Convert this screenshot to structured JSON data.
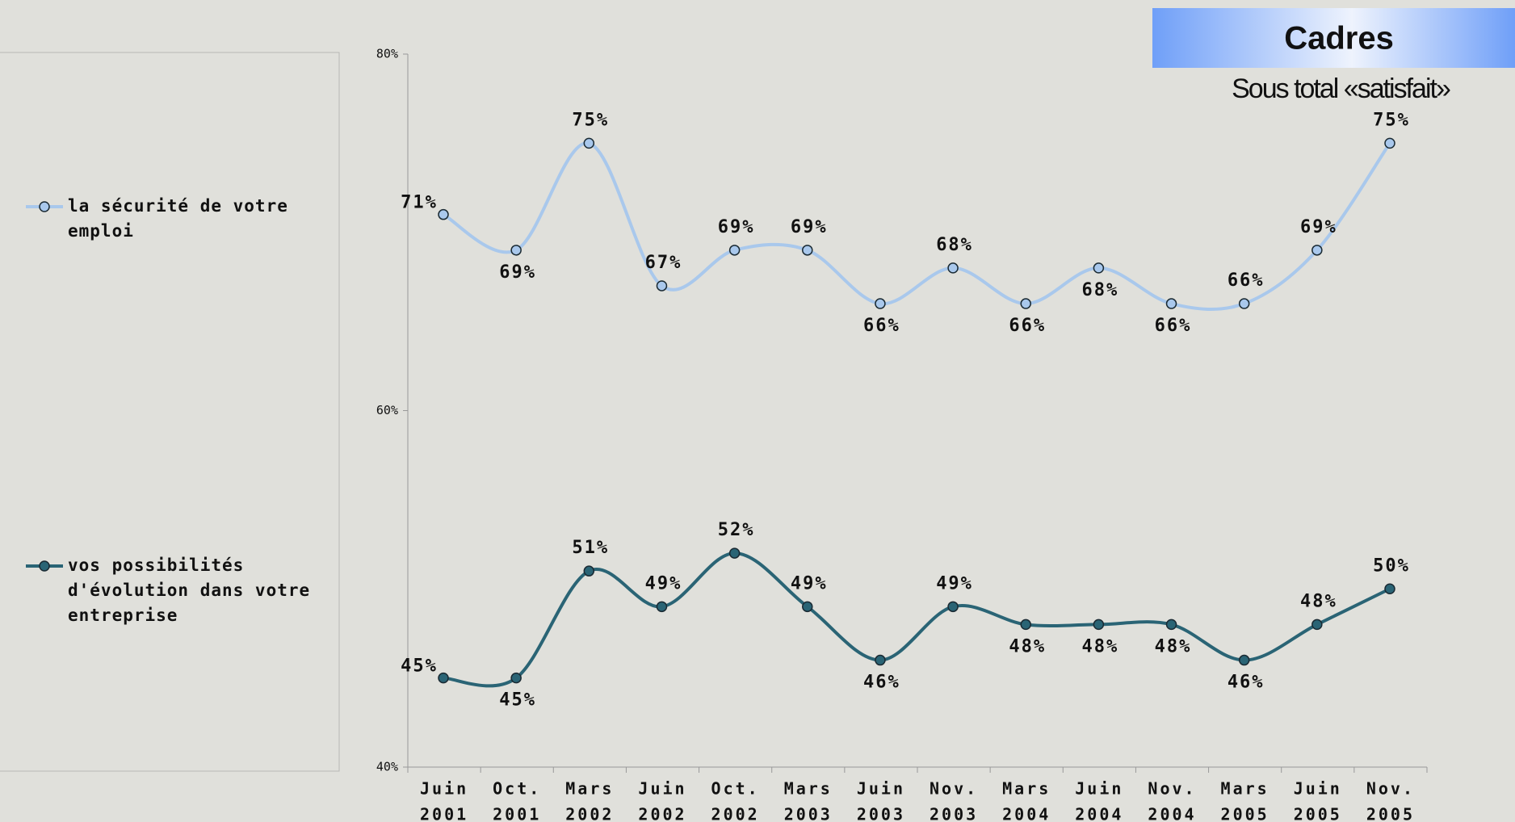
{
  "chart_data": {
    "type": "line",
    "title": "Cadres",
    "subtitle": "Sous total «satisfait»",
    "categories": [
      [
        "Juin",
        "2001"
      ],
      [
        "Oct.",
        "2001"
      ],
      [
        "Mars",
        "2002"
      ],
      [
        "Juin",
        "2002"
      ],
      [
        "Oct.",
        "2002"
      ],
      [
        "Mars",
        "2003"
      ],
      [
        "Juin",
        "2003"
      ],
      [
        "Nov.",
        "2003"
      ],
      [
        "Mars",
        "2004"
      ],
      [
        "Juin",
        "2004"
      ],
      [
        "Nov.",
        "2004"
      ],
      [
        "Mars",
        "2005"
      ],
      [
        "Juin",
        "2005"
      ],
      [
        "Nov.",
        "2005"
      ]
    ],
    "series": [
      {
        "name": "la sécurité de votre emploi",
        "color": "#a9c8ec",
        "values": [
          71,
          69,
          75,
          67,
          69,
          69,
          66,
          68,
          66,
          68,
          66,
          66,
          69,
          75
        ],
        "value_labels": [
          "71%",
          "69%",
          "75%",
          "67%",
          "69%",
          "69%",
          "66%",
          "68%",
          "66%",
          "68%",
          "66%",
          "66%",
          "69%",
          "75%"
        ]
      },
      {
        "name": "vos possibilités d'évolution dans votre entreprise",
        "color": "#2a6475",
        "values": [
          45,
          45,
          51,
          49,
          52,
          49,
          46,
          49,
          48,
          48,
          48,
          46,
          48,
          50
        ],
        "value_labels": [
          "45%",
          "45%",
          "51%",
          "49%",
          "52%",
          "49%",
          "46%",
          "49%",
          "48%",
          "48%",
          "48%",
          "46%",
          "48%",
          "50%"
        ]
      }
    ],
    "ylim": [
      40,
      80
    ],
    "yticks": [
      {
        "value": 40,
        "label": "40%"
      },
      {
        "value": 60,
        "label": "60%"
      },
      {
        "value": 80,
        "label": "80%"
      }
    ],
    "legend": "left"
  }
}
